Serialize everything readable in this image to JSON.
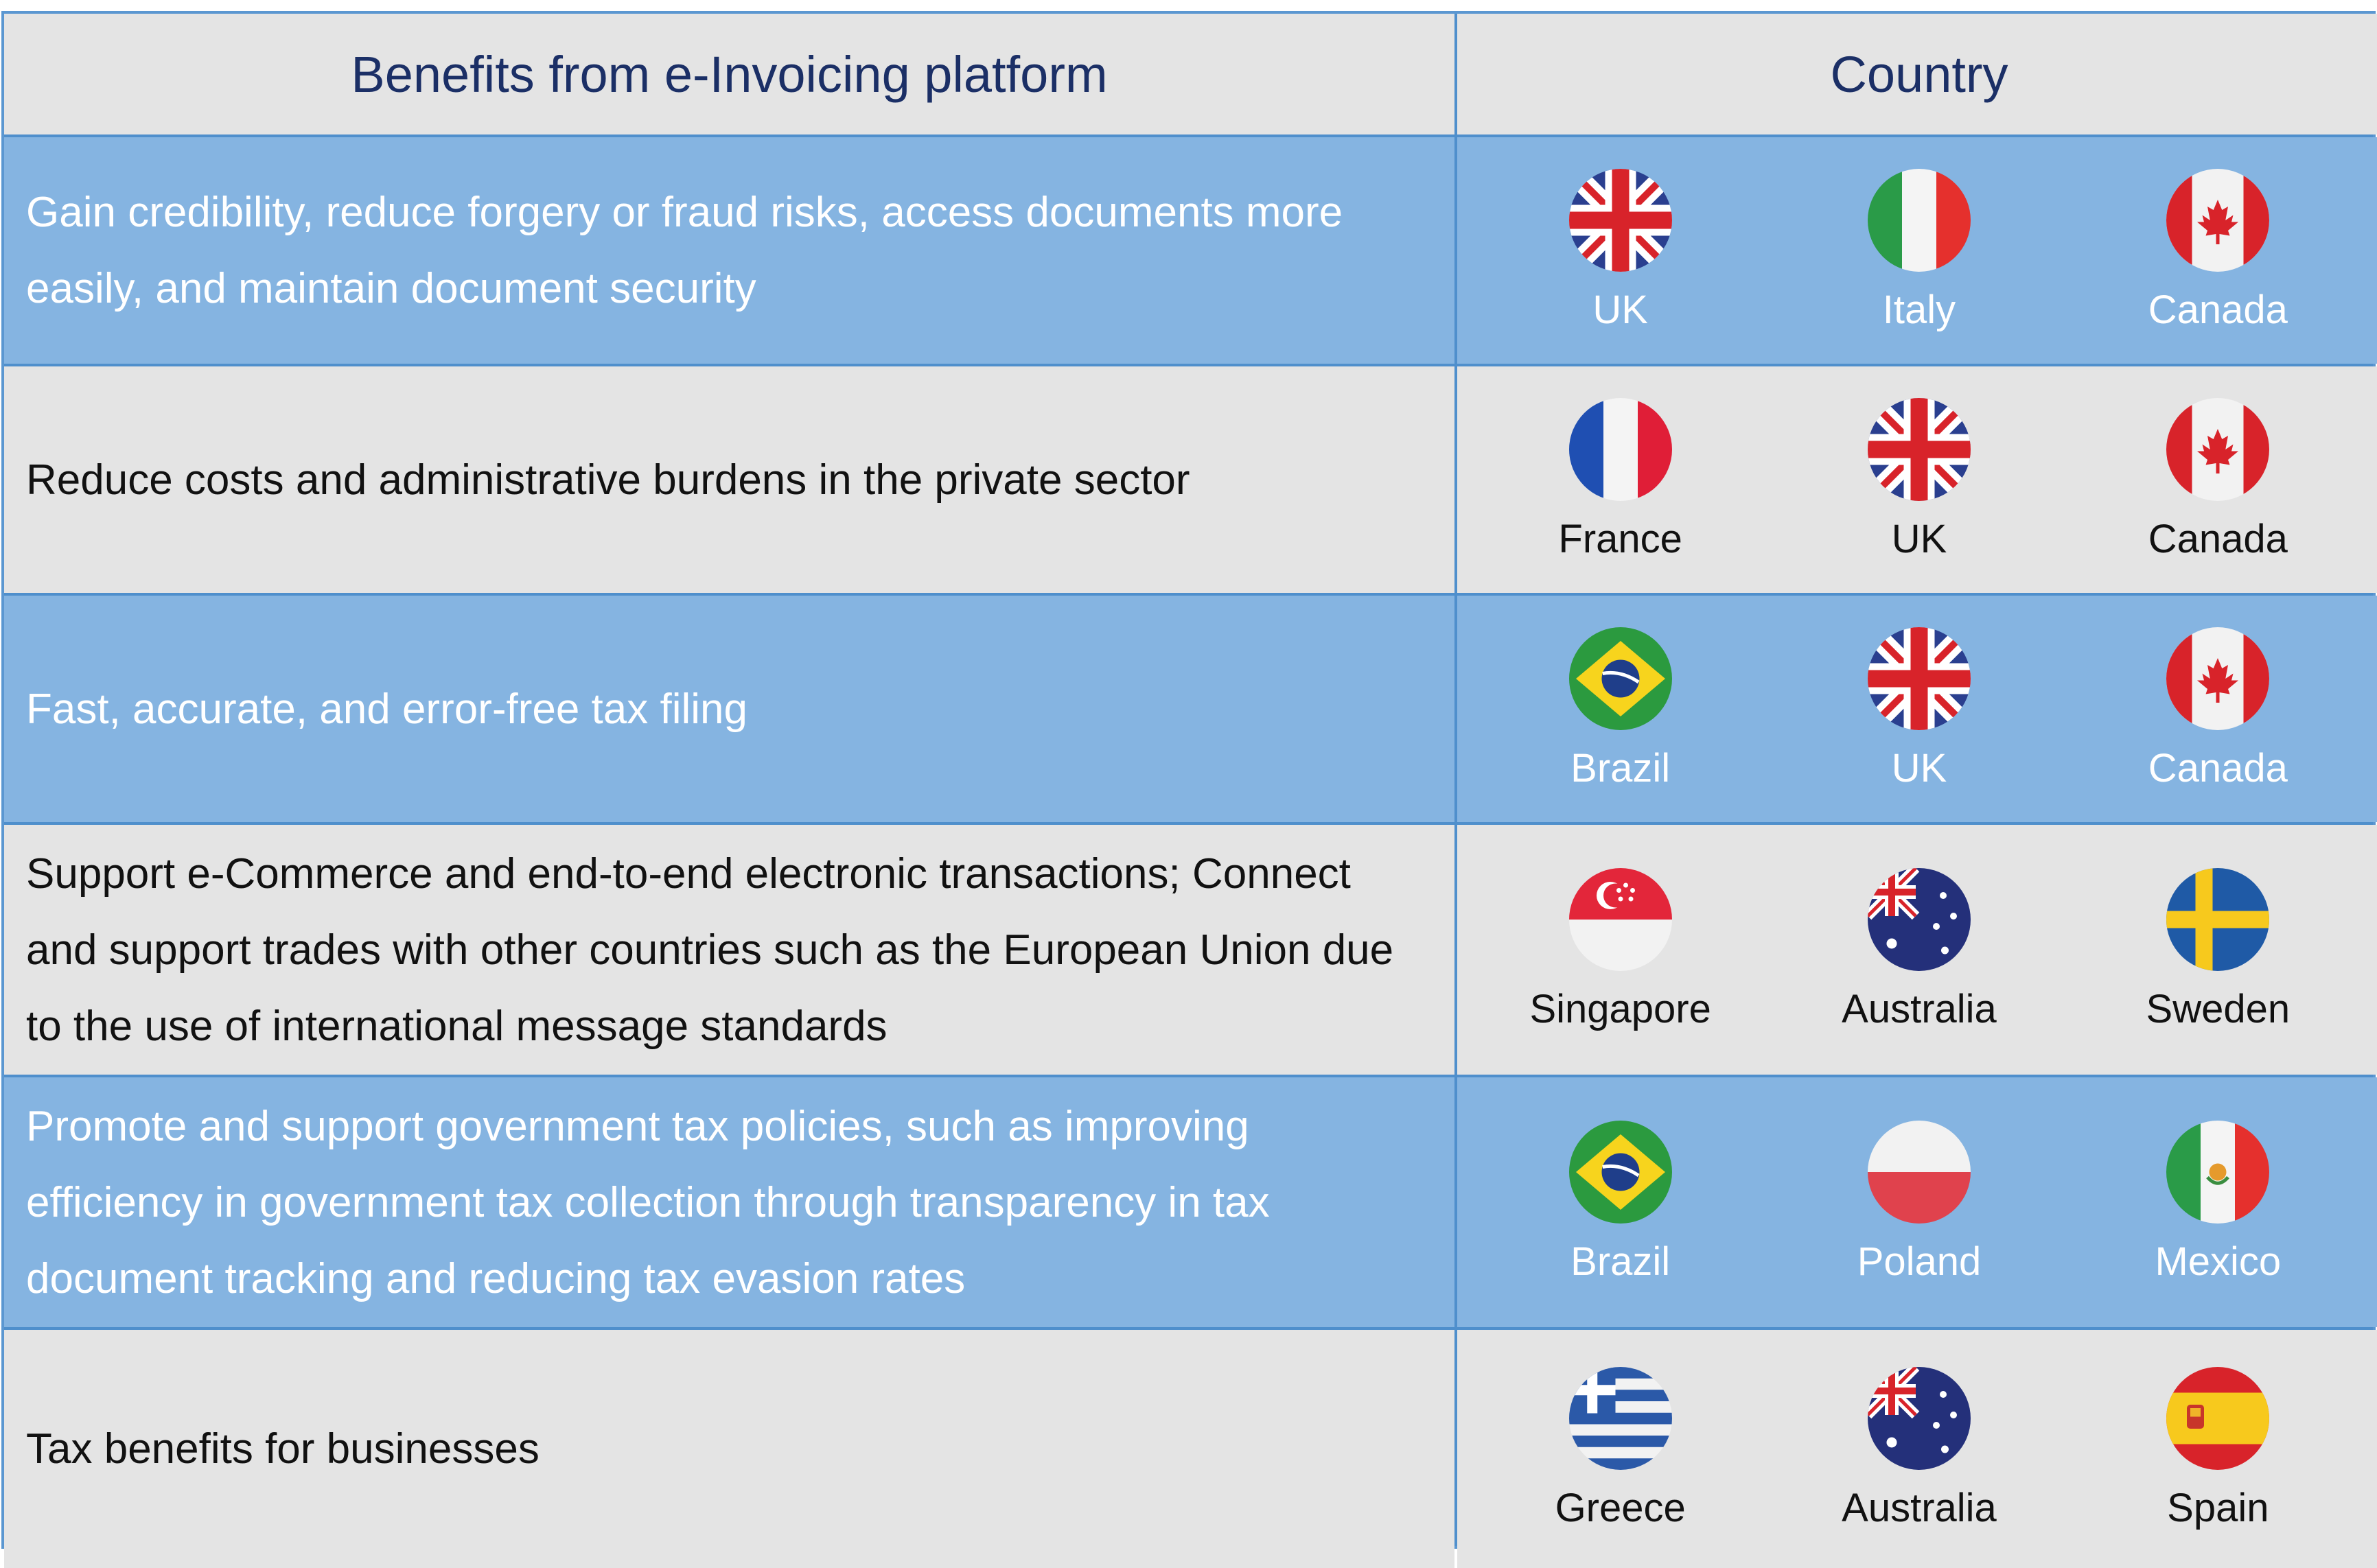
{
  "header": {
    "benefits_title": "Benefits from e-Invoicing platform",
    "country_title": "Country"
  },
  "colors": {
    "header_bg": "#e4e4e4",
    "header_text": "#1b2f66",
    "row_blue": "#85b4e1",
    "row_grey": "#e4e4e4",
    "border": "#5b97d1"
  },
  "rows": [
    {
      "benefit": "Gain credibility, reduce forgery or fraud risks, access documents more easily, and maintain document security",
      "style": "blue",
      "countries": [
        {
          "name": "UK",
          "flag": "uk-flag-icon"
        },
        {
          "name": "Italy",
          "flag": "italy-flag-icon"
        },
        {
          "name": "Canada",
          "flag": "canada-flag-icon"
        }
      ]
    },
    {
      "benefit": "Reduce costs and administrative burdens in the private sector",
      "style": "grey",
      "countries": [
        {
          "name": "France",
          "flag": "france-flag-icon"
        },
        {
          "name": "UK",
          "flag": "uk-flag-icon"
        },
        {
          "name": "Canada",
          "flag": "canada-flag-icon"
        }
      ]
    },
    {
      "benefit": "Fast, accurate, and error-free tax filing",
      "style": "blue",
      "countries": [
        {
          "name": "Brazil",
          "flag": "brazil-flag-icon"
        },
        {
          "name": "UK",
          "flag": "uk-flag-icon"
        },
        {
          "name": "Canada",
          "flag": "canada-flag-icon"
        }
      ]
    },
    {
      "benefit": "Support e-Commerce and end-to-end electronic transactions; Connect and support trades with other countries such as the European Union due to the use of international message standards",
      "style": "grey",
      "countries": [
        {
          "name": "Singapore",
          "flag": "singapore-flag-icon"
        },
        {
          "name": "Australia",
          "flag": "australia-flag-icon"
        },
        {
          "name": "Sweden",
          "flag": "sweden-flag-icon"
        }
      ]
    },
    {
      "benefit": "Promote and support government tax policies, such as improving efficiency in government tax collection through transparency in tax document tracking and reducing tax evasion rates",
      "style": "blue",
      "countries": [
        {
          "name": "Brazil",
          "flag": "brazil-flag-icon"
        },
        {
          "name": "Poland",
          "flag": "poland-flag-icon"
        },
        {
          "name": "Mexico",
          "flag": "mexico-flag-icon"
        }
      ]
    },
    {
      "benefit": "Tax benefits for businesses",
      "style": "grey",
      "countries": [
        {
          "name": "Greece",
          "flag": "greece-flag-icon"
        },
        {
          "name": "Australia",
          "flag": "australia-flag-icon"
        },
        {
          "name": "Spain",
          "flag": "spain-flag-icon"
        }
      ]
    }
  ]
}
